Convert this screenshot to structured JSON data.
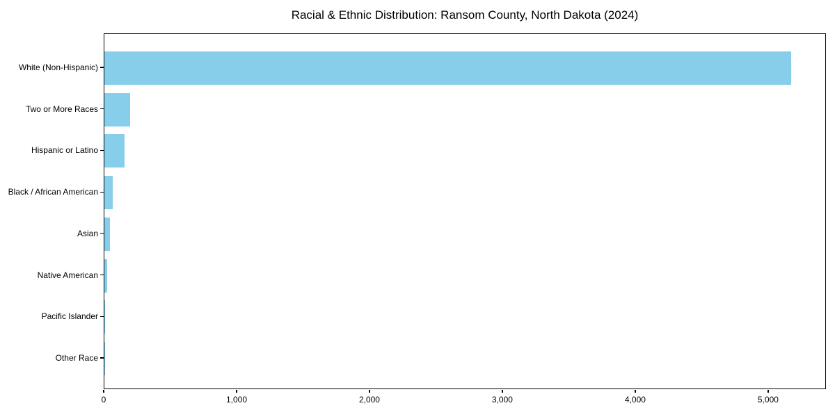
{
  "chart_data": {
    "type": "bar",
    "orientation": "horizontal",
    "title": "Racial & Ethnic Distribution: Ransom County, North Dakota (2024)",
    "categories": [
      "White (Non-Hispanic)",
      "Two or More Races",
      "Hispanic or Latino",
      "Black / African American",
      "Asian",
      "Native American",
      "Pacific Islander",
      "Other Race"
    ],
    "values": [
      5170,
      195,
      152,
      63,
      42,
      20,
      2,
      1
    ],
    "bar_color": "#87CEEB",
    "axis_color": "#000000",
    "background_color": "#ffffff",
    "xlim": [
      0,
      5435
    ],
    "x_ticks": [
      0,
      1000,
      2000,
      3000,
      4000,
      5000
    ],
    "x_tick_labels": [
      "0",
      "1,000",
      "2,000",
      "3,000",
      "4,000",
      "5,000"
    ],
    "xlabel": "",
    "ylabel": "",
    "grid": false,
    "legend": null
  }
}
